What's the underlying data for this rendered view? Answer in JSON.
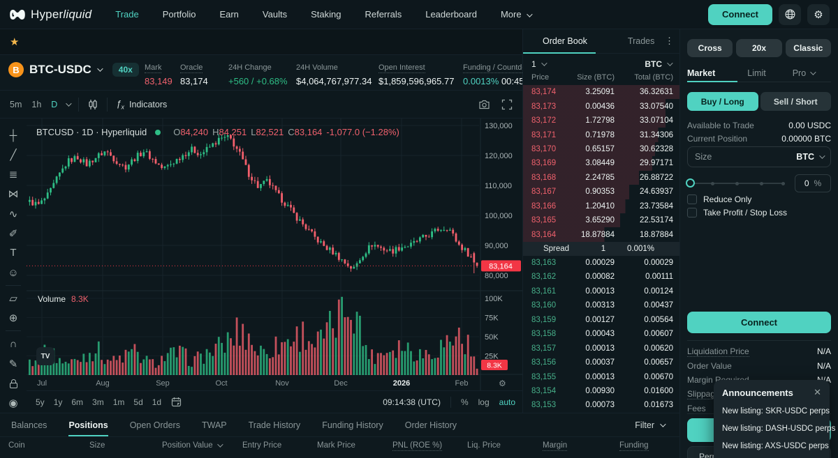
{
  "colors": {
    "accent": "#50d2c1",
    "red": "#f0616d",
    "badge_red": "#f23645",
    "green": "#2ebd85",
    "candle_up": "#2ebd85",
    "candle_down": "#f25f6c"
  },
  "nav": {
    "brand": {
      "regular": "Hyper",
      "italic": "liquid"
    },
    "items": [
      {
        "label": "Trade",
        "active": true
      },
      {
        "label": "Portfolio",
        "active": false
      },
      {
        "label": "Earn",
        "active": false
      },
      {
        "label": "Vaults",
        "active": false
      },
      {
        "label": "Staking",
        "active": false
      },
      {
        "label": "Referrals",
        "active": false
      },
      {
        "label": "Leaderboard",
        "active": false
      }
    ],
    "more_label": "More",
    "connect_label": "Connect"
  },
  "favorites": {
    "star": "★"
  },
  "ticker": {
    "pair": "BTC-USDC",
    "leverage_badge": "40x",
    "stats": [
      {
        "label": "Mark",
        "value": "83,149",
        "color": "red",
        "dotted": true
      },
      {
        "label": "Oracle",
        "value": "83,174",
        "color": "white",
        "dotted": true
      },
      {
        "label": "24H Change",
        "value": "+560 / +0.68%",
        "color": "green",
        "dotted": false
      },
      {
        "label": "24H Volume",
        "value": "$4,064,767,977.34",
        "color": "white",
        "dotted": false
      },
      {
        "label": "Open Interest",
        "value": "$1,859,596,965.77",
        "color": "white",
        "dotted": true
      },
      {
        "label": "Funding / Countdown",
        "value": "0.0013%",
        "value2": "00:45",
        "color": "accent",
        "dotted": true
      }
    ]
  },
  "chart_toolbar": {
    "timeframes": [
      "5m",
      "1h",
      "D"
    ],
    "active": "D",
    "fx": "ƒ",
    "fx_sub": "x",
    "indicators": "Indicators"
  },
  "drawing_tools": [
    "crosshair",
    "trend-line",
    "parallel-channel",
    "xabcd-pattern",
    "forecast",
    "brush",
    "text",
    "emoji",
    "ruler",
    "zoom-in",
    "magnet",
    "edit-lock",
    "lock",
    "eye"
  ],
  "chart_data": {
    "type": "candlestick",
    "legend_title": "BTCUSD · 1D · Hyperliquid",
    "ohlc": [
      {
        "k": "O",
        "v": "84,240"
      },
      {
        "k": "H",
        "v": "84,251"
      },
      {
        "k": "L",
        "v": "82,521"
      },
      {
        "k": "C",
        "v": "83,164"
      }
    ],
    "change": "-1,077.0 (−1.28%)",
    "y_ticks": [
      "130,000",
      "120,000",
      "110,000",
      "100,000",
      "90,000",
      "80,000"
    ],
    "y_tick_values": [
      130,
      120,
      110,
      100,
      90,
      80
    ],
    "x_ticks": [
      "Jul",
      "Aug",
      "Sep",
      "Oct",
      "Nov",
      "Dec",
      "2026",
      "Feb"
    ],
    "volume_ticks": [
      "100K",
      "75K",
      "50K",
      "25K"
    ],
    "volume_tick_values": [
      100,
      75,
      50,
      25
    ],
    "volume_label": "Volume",
    "volume_value": "8.3K",
    "current_price": "83,164",
    "current_price_value": 83.164,
    "last_candle": {
      "o": 84.24,
      "h": 84.3,
      "l": 82.52,
      "c": 83.164
    },
    "price_path": [
      104.5,
      103.5,
      107,
      113,
      118,
      119.5,
      117,
      119.5,
      121.5,
      118.5,
      116,
      119,
      121.5,
      118.5,
      115.5,
      117.5,
      120,
      122,
      120.5,
      123,
      125.5,
      126,
      121,
      114,
      109.5,
      111.5,
      107,
      103.5,
      99.5,
      96,
      92.5,
      89.5,
      87.5,
      84.5,
      82,
      87,
      90.5,
      89,
      88,
      89.5,
      90,
      92,
      93.5,
      95.5,
      96,
      90.5,
      87.5,
      83.2
    ],
    "volume_path": [
      18,
      24,
      30,
      22,
      15,
      20,
      28,
      34,
      22,
      18,
      25,
      30,
      20,
      15,
      22,
      27,
      28,
      18,
      24,
      30,
      36,
      45,
      58,
      50,
      30,
      34,
      38,
      45,
      50,
      55,
      40,
      50,
      65,
      90,
      100,
      45,
      24,
      30,
      36,
      40,
      34,
      28,
      30,
      36,
      45,
      52,
      40,
      8.3
    ],
    "footer_timeframes": [
      "5y",
      "1y",
      "6m",
      "3m",
      "1m",
      "5d",
      "1d"
    ],
    "clock": "09:14:38 (UTC)",
    "percent_label": "%",
    "log_label": "log",
    "auto_label": "auto"
  },
  "order_book": {
    "tabs": [
      "Order Book",
      "Trades"
    ],
    "active_tab": "Order Book",
    "tick_size": "1",
    "asset": "BTC",
    "columns": [
      "Price",
      "Size (BTC)",
      "Total (BTC)"
    ],
    "asks": [
      [
        "83,174",
        "3.25091",
        "36.32631"
      ],
      [
        "83,173",
        "0.00436",
        "33.07540"
      ],
      [
        "83,172",
        "1.72798",
        "33.07104"
      ],
      [
        "83,171",
        "0.71978",
        "31.34306"
      ],
      [
        "83,170",
        "0.65157",
        "30.62328"
      ],
      [
        "83,169",
        "3.08449",
        "29.97171"
      ],
      [
        "83,168",
        "2.24785",
        "26.88722"
      ],
      [
        "83,167",
        "0.90353",
        "24.63937"
      ],
      [
        "83,166",
        "1.20410",
        "23.73584"
      ],
      [
        "83,165",
        "3.65290",
        "22.53174"
      ],
      [
        "83,164",
        "18.87884",
        "18.87884"
      ]
    ],
    "spread": {
      "label": "Spread",
      "value": "1",
      "percent": "0.001%"
    },
    "bids": [
      [
        "83,163",
        "0.00029",
        "0.00029"
      ],
      [
        "83,162",
        "0.00082",
        "0.00111"
      ],
      [
        "83,161",
        "0.00013",
        "0.00124"
      ],
      [
        "83,160",
        "0.00313",
        "0.00437"
      ],
      [
        "83,159",
        "0.00127",
        "0.00564"
      ],
      [
        "83,158",
        "0.00043",
        "0.00607"
      ],
      [
        "83,157",
        "0.00013",
        "0.00620"
      ],
      [
        "83,156",
        "0.00037",
        "0.00657"
      ],
      [
        "83,155",
        "0.00013",
        "0.00670"
      ],
      [
        "83,154",
        "0.00930",
        "0.01600"
      ],
      [
        "83,153",
        "0.00073",
        "0.01673"
      ]
    ]
  },
  "trade_panel": {
    "margin_mode": "Cross",
    "leverage": "20x",
    "mode": "Classic",
    "tabs": [
      "Market",
      "Limit",
      "Pro"
    ],
    "active_tab": "Market",
    "buy_label": "Buy / Long",
    "sell_label": "Sell / Short",
    "info_rows": [
      {
        "label": "Available to Trade",
        "value": "0.00 USDC"
      },
      {
        "label": "Current Position",
        "value": "0.00000 BTC"
      }
    ],
    "size_label": "Size",
    "size_unit": "BTC",
    "slider_percent": "0",
    "slider_unit": "%",
    "checkboxes": [
      "Reduce Only",
      "Take Profit / Stop Loss"
    ],
    "connect_label": "Connect",
    "details": [
      {
        "label": "Liquidation Price",
        "value": "N/A",
        "dotted": true
      },
      {
        "label": "Order Value",
        "value": "N/A",
        "dotted": false
      },
      {
        "label": "Margin Required",
        "value": "N/A",
        "dotted": false
      },
      {
        "label": "Slippage",
        "value": "",
        "dotted": true
      },
      {
        "label": "Fees",
        "value": "",
        "dotted": true
      }
    ],
    "bottom_partial_label": "Perp"
  },
  "bottom_panel": {
    "tabs": [
      "Balances",
      "Positions",
      "Open Orders",
      "TWAP",
      "Trade History",
      "Funding History",
      "Order History"
    ],
    "active_tab": "Positions",
    "filter_label": "Filter",
    "columns": [
      {
        "label": "Coin",
        "dotted": false,
        "chevron": false
      },
      {
        "label": "Size",
        "dotted": false,
        "chevron": false
      },
      {
        "label": "Position Value",
        "dotted": false,
        "chevron": true
      },
      {
        "label": "Entry Price",
        "dotted": false,
        "chevron": false
      },
      {
        "label": "Mark Price",
        "dotted": false,
        "chevron": false
      },
      {
        "label": "PNL (ROE %)",
        "dotted": true,
        "chevron": false
      },
      {
        "label": "Liq. Price",
        "dotted": false,
        "chevron": false
      },
      {
        "label": "Margin",
        "dotted": true,
        "chevron": false
      },
      {
        "label": "Funding",
        "dotted": true,
        "chevron": false
      }
    ]
  },
  "announcements": {
    "title": "Announcements",
    "close": "✕",
    "items": [
      "New listing: SKR-USDC perps",
      "New listing: DASH-USDC perps",
      "New listing: AXS-USDC perps"
    ]
  }
}
